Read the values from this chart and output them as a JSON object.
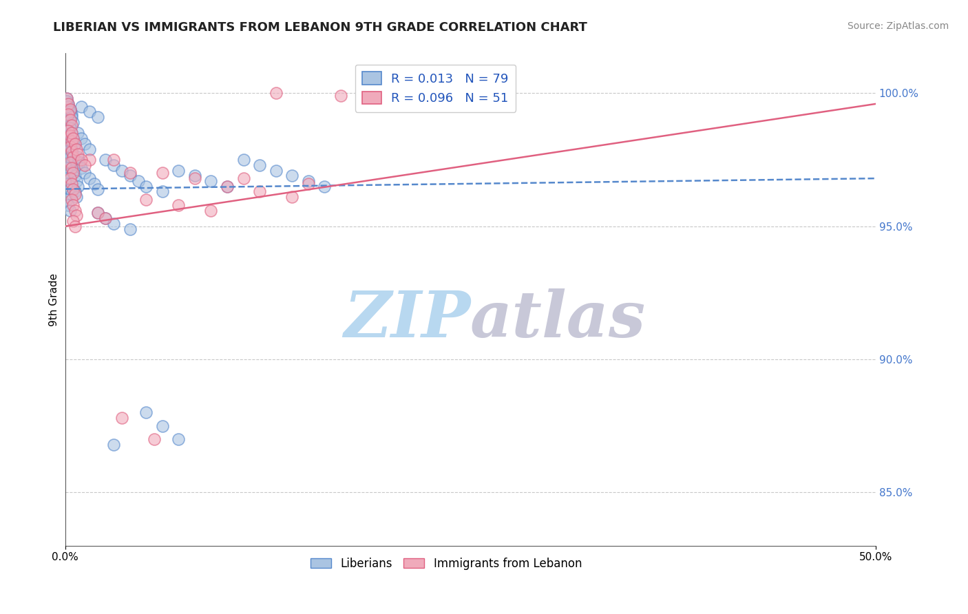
{
  "title": "LIBERIAN VS IMMIGRANTS FROM LEBANON 9TH GRADE CORRELATION CHART",
  "source": "Source: ZipAtlas.com",
  "ylabel": "9th Grade",
  "xlim": [
    0.0,
    0.5
  ],
  "ylim": [
    0.83,
    1.015
  ],
  "yticks": [
    0.85,
    0.9,
    0.95,
    1.0
  ],
  "ytick_labels": [
    "85.0%",
    "90.0%",
    "95.0%",
    "100.0%"
  ],
  "blue_R": "0.013",
  "blue_N": "79",
  "pink_R": "0.096",
  "pink_N": "51",
  "blue_color": "#aac4e2",
  "pink_color": "#f0aabb",
  "blue_edge_color": "#5588cc",
  "pink_edge_color": "#e06080",
  "blue_line_color": "#5588cc",
  "pink_line_color": "#e06080",
  "scatter_blue": [
    [
      0.001,
      0.998
    ],
    [
      0.002,
      0.996
    ],
    [
      0.003,
      0.994
    ],
    [
      0.004,
      0.992
    ],
    [
      0.002,
      0.99
    ],
    [
      0.003,
      0.988
    ],
    [
      0.001,
      0.986
    ],
    [
      0.002,
      0.984
    ],
    [
      0.003,
      0.982
    ],
    [
      0.004,
      0.98
    ],
    [
      0.002,
      0.978
    ],
    [
      0.003,
      0.976
    ],
    [
      0.004,
      0.974
    ],
    [
      0.002,
      0.972
    ],
    [
      0.003,
      0.97
    ],
    [
      0.001,
      0.968
    ],
    [
      0.002,
      0.966
    ],
    [
      0.003,
      0.964
    ],
    [
      0.004,
      0.962
    ],
    [
      0.001,
      0.96
    ],
    [
      0.002,
      0.958
    ],
    [
      0.003,
      0.956
    ],
    [
      0.001,
      0.997
    ],
    [
      0.002,
      0.995
    ],
    [
      0.003,
      0.993
    ],
    [
      0.004,
      0.991
    ],
    [
      0.005,
      0.989
    ],
    [
      0.003,
      0.987
    ],
    [
      0.004,
      0.985
    ],
    [
      0.005,
      0.983
    ],
    [
      0.006,
      0.981
    ],
    [
      0.004,
      0.979
    ],
    [
      0.005,
      0.977
    ],
    [
      0.006,
      0.975
    ],
    [
      0.007,
      0.973
    ],
    [
      0.005,
      0.971
    ],
    [
      0.006,
      0.969
    ],
    [
      0.007,
      0.967
    ],
    [
      0.008,
      0.965
    ],
    [
      0.006,
      0.963
    ],
    [
      0.007,
      0.961
    ],
    [
      0.008,
      0.976
    ],
    [
      0.009,
      0.974
    ],
    [
      0.01,
      0.972
    ],
    [
      0.012,
      0.97
    ],
    [
      0.015,
      0.968
    ],
    [
      0.018,
      0.966
    ],
    [
      0.02,
      0.964
    ],
    [
      0.008,
      0.985
    ],
    [
      0.01,
      0.983
    ],
    [
      0.012,
      0.981
    ],
    [
      0.015,
      0.979
    ],
    [
      0.01,
      0.995
    ],
    [
      0.015,
      0.993
    ],
    [
      0.02,
      0.991
    ],
    [
      0.025,
      0.975
    ],
    [
      0.03,
      0.973
    ],
    [
      0.035,
      0.971
    ],
    [
      0.04,
      0.969
    ],
    [
      0.045,
      0.967
    ],
    [
      0.05,
      0.965
    ],
    [
      0.06,
      0.963
    ],
    [
      0.07,
      0.971
    ],
    [
      0.08,
      0.969
    ],
    [
      0.09,
      0.967
    ],
    [
      0.1,
      0.965
    ],
    [
      0.11,
      0.975
    ],
    [
      0.12,
      0.973
    ],
    [
      0.13,
      0.971
    ],
    [
      0.14,
      0.969
    ],
    [
      0.15,
      0.967
    ],
    [
      0.16,
      0.965
    ],
    [
      0.02,
      0.955
    ],
    [
      0.025,
      0.953
    ],
    [
      0.03,
      0.951
    ],
    [
      0.04,
      0.949
    ],
    [
      0.05,
      0.88
    ],
    [
      0.06,
      0.875
    ],
    [
      0.07,
      0.87
    ],
    [
      0.03,
      0.868
    ]
  ],
  "scatter_pink": [
    [
      0.001,
      0.998
    ],
    [
      0.002,
      0.996
    ],
    [
      0.003,
      0.994
    ],
    [
      0.002,
      0.992
    ],
    [
      0.003,
      0.99
    ],
    [
      0.004,
      0.988
    ],
    [
      0.002,
      0.986
    ],
    [
      0.003,
      0.984
    ],
    [
      0.004,
      0.982
    ],
    [
      0.003,
      0.98
    ],
    [
      0.004,
      0.978
    ],
    [
      0.005,
      0.976
    ],
    [
      0.003,
      0.974
    ],
    [
      0.004,
      0.972
    ],
    [
      0.005,
      0.97
    ],
    [
      0.003,
      0.968
    ],
    [
      0.004,
      0.966
    ],
    [
      0.005,
      0.964
    ],
    [
      0.006,
      0.962
    ],
    [
      0.004,
      0.96
    ],
    [
      0.005,
      0.958
    ],
    [
      0.006,
      0.956
    ],
    [
      0.007,
      0.954
    ],
    [
      0.005,
      0.952
    ],
    [
      0.006,
      0.95
    ],
    [
      0.004,
      0.985
    ],
    [
      0.005,
      0.983
    ],
    [
      0.006,
      0.981
    ],
    [
      0.007,
      0.979
    ],
    [
      0.008,
      0.977
    ],
    [
      0.015,
      0.975
    ],
    [
      0.02,
      0.955
    ],
    [
      0.025,
      0.953
    ],
    [
      0.03,
      0.975
    ],
    [
      0.04,
      0.97
    ],
    [
      0.06,
      0.97
    ],
    [
      0.08,
      0.968
    ],
    [
      0.1,
      0.965
    ],
    [
      0.12,
      0.963
    ],
    [
      0.14,
      0.961
    ],
    [
      0.13,
      1.0
    ],
    [
      0.17,
      0.999
    ],
    [
      0.05,
      0.96
    ],
    [
      0.07,
      0.958
    ],
    [
      0.09,
      0.956
    ],
    [
      0.11,
      0.968
    ],
    [
      0.15,
      0.966
    ],
    [
      0.01,
      0.975
    ],
    [
      0.012,
      0.973
    ],
    [
      0.035,
      0.878
    ],
    [
      0.055,
      0.87
    ]
  ],
  "blue_trend_x": [
    0.0,
    0.5
  ],
  "blue_trend_y": [
    0.964,
    0.968
  ],
  "pink_trend_x": [
    0.0,
    0.5
  ],
  "pink_trend_y": [
    0.95,
    0.996
  ],
  "watermark_zip": "ZIP",
  "watermark_atlas": "atlas",
  "watermark_color_zip": "#b8d8f0",
  "watermark_color_atlas": "#c8c8d8",
  "background_color": "#ffffff",
  "grid_color": "#c8c8c8"
}
